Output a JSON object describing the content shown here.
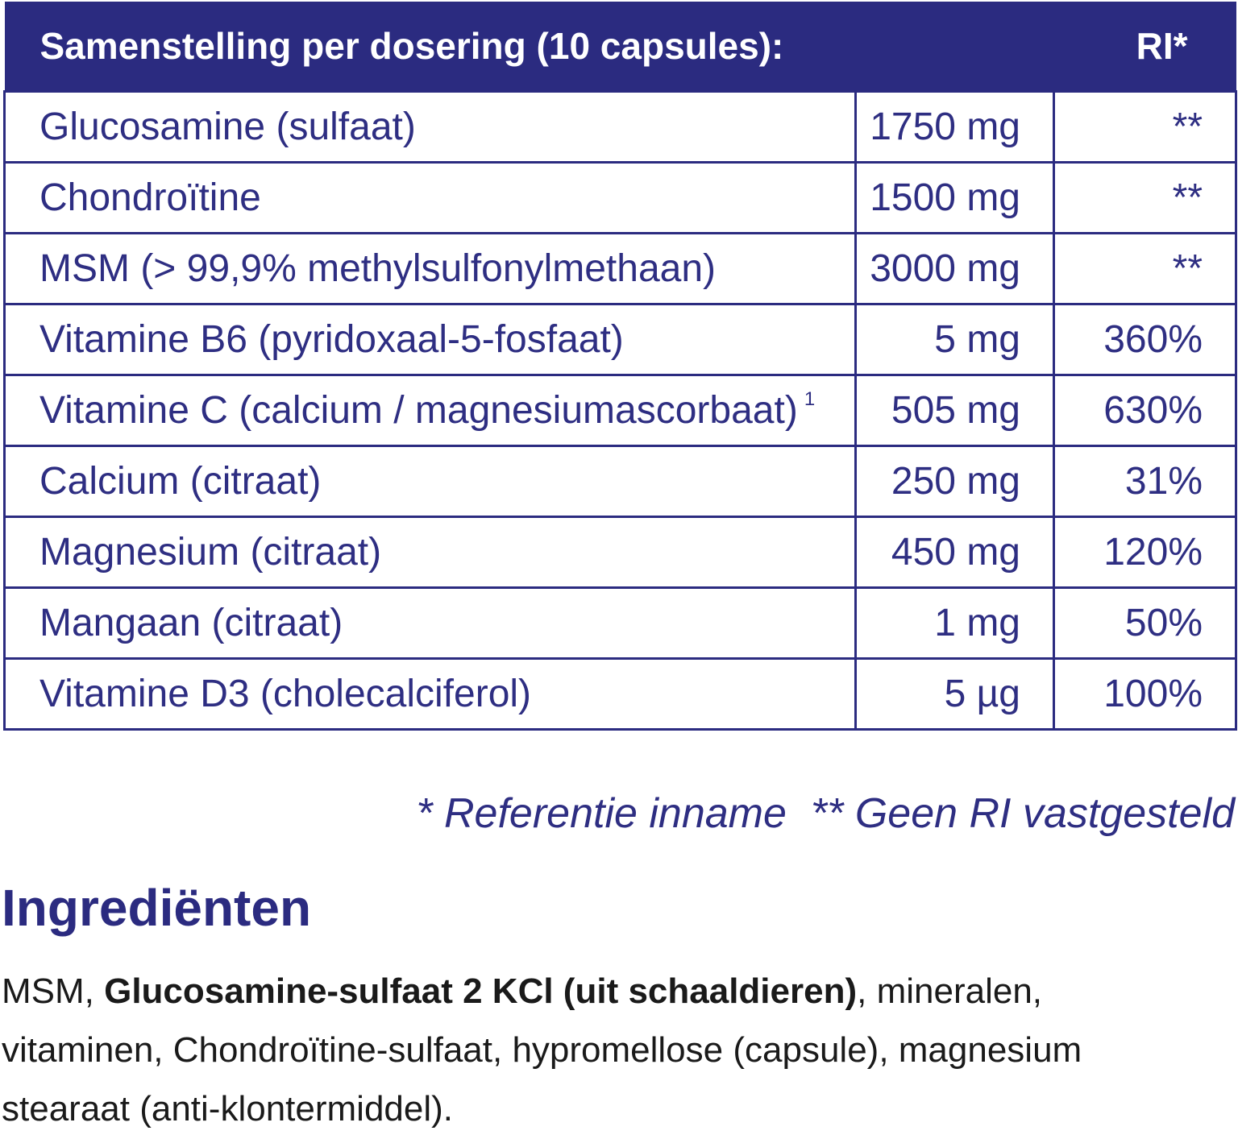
{
  "table": {
    "header": [
      "Samenstelling per dosering (10 capsules):",
      "RI*"
    ],
    "rows": [
      {
        "name": "Glucosamine (sulfaat)",
        "amount": "1750 mg",
        "ri": "**"
      },
      {
        "name": "Chondroïtine",
        "amount": "1500 mg",
        "ri": "**"
      },
      {
        "name": "MSM (> 99,9% methylsulfonylmethaan)",
        "amount": "3000 mg",
        "ri": "**"
      },
      {
        "name": "Vitamine B6 (pyridoxaal-5-fosfaat)",
        "amount": "5 mg",
        "ri": "360%"
      },
      {
        "name": "Vitamine C (calcium / magnesiumascorbaat)",
        "note": "1",
        "amount": "505 mg",
        "ri": "630%"
      },
      {
        "name": "Calcium (citraat)",
        "amount": "250 mg",
        "ri": "31%"
      },
      {
        "name": "Magnesium (citraat)",
        "amount": "450 mg",
        "ri": "120%"
      },
      {
        "name": "Mangaan (citraat)",
        "amount": "1 mg",
        "ri": "50%"
      },
      {
        "name": "Vitamine D3 (cholecalciferol)",
        "amount": "5 µg",
        "ri": "100%"
      }
    ]
  },
  "footnotes": [
    "* Referentie inname",
    "** Geen RI vastgesteld"
  ],
  "ingredients": {
    "title": "Ingrediënten",
    "parts": [
      {
        "text": "MSM, ",
        "bold": false
      },
      {
        "text": "Glucosamine-sulfaat 2 KCl (uit schaaldieren)",
        "bold": true
      },
      {
        "text": ", mineralen, vitaminen, Chondroïtine-sulfaat, hypromellose (capsule), magnesium stearaat (anti-klontermiddel).",
        "bold": false
      }
    ]
  }
}
